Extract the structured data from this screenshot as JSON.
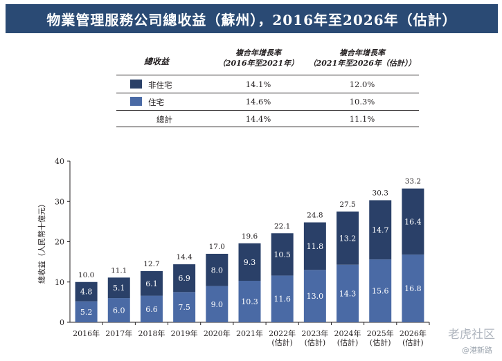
{
  "title": "物業管理服務公司總收益（蘇州），2016年至2026年（估計）",
  "table": {
    "header_label": "總收益",
    "col1_line1": "複合年增長率",
    "col1_line2": "（2016年至2021年）",
    "col2_line1": "複合年增長率",
    "col2_line2": "（2021年至2026年（估計））",
    "rows": [
      {
        "label": "非住宅",
        "cagr_2016_2021": "14.1%",
        "cagr_2021_2026": "12.0%",
        "color": "#2a4068"
      },
      {
        "label": "住宅",
        "cagr_2016_2021": "14.6%",
        "cagr_2021_2026": "10.3%",
        "color": "#4a6aa5"
      },
      {
        "label": "總計",
        "cagr_2016_2021": "14.4%",
        "cagr_2021_2026": "11.1%"
      }
    ]
  },
  "chart_data": {
    "type": "bar",
    "stacked": true,
    "ylabel": "總收益（人民幣十億元）",
    "ylim": [
      0,
      40
    ],
    "yticks": [
      0,
      10,
      20,
      30,
      40
    ],
    "categories": [
      [
        "2016年"
      ],
      [
        "2017年"
      ],
      [
        "2018年"
      ],
      [
        "2019年"
      ],
      [
        "2020年"
      ],
      [
        "2021年"
      ],
      [
        "2022年",
        "(估計)"
      ],
      [
        "2023年",
        "(估計)"
      ],
      [
        "2024年",
        "(估計)"
      ],
      [
        "2025年",
        "(估計)"
      ],
      [
        "2026年",
        "(估計)"
      ]
    ],
    "series": [
      {
        "name": "住宅",
        "color": "#4a6aa5",
        "values": [
          5.2,
          6.0,
          6.6,
          7.5,
          9.0,
          10.3,
          11.6,
          13.0,
          14.3,
          15.6,
          16.8
        ]
      },
      {
        "name": "非住宅",
        "color": "#2a4068",
        "values": [
          4.8,
          5.1,
          6.1,
          6.9,
          8.0,
          9.3,
          10.5,
          11.8,
          13.2,
          14.7,
          16.4
        ]
      }
    ],
    "totals": [
      10.0,
      11.1,
      12.7,
      14.4,
      17.0,
      19.6,
      22.1,
      24.8,
      27.5,
      30.3,
      33.2
    ],
    "grid": false
  },
  "watermark": {
    "main": "老虎社区",
    "sub": "@港新路"
  }
}
